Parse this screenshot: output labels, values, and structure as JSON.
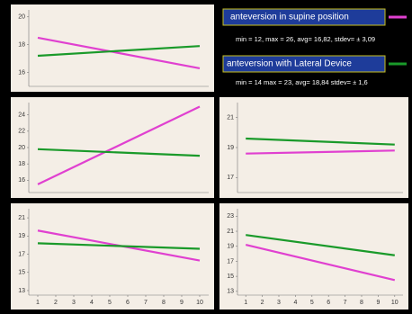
{
  "chart_data": [
    {
      "type": "line",
      "x": [
        1,
        10
      ],
      "xlim": [
        0.5,
        10.5
      ],
      "ylim": [
        15,
        20.5
      ],
      "yticks": [
        16,
        18,
        20
      ],
      "series": [
        {
          "color": "#e040d0",
          "values": [
            18.5,
            16.3
          ]
        },
        {
          "color": "#1a9a2a",
          "values": [
            17.2,
            17.9
          ]
        }
      ]
    },
    {
      "type": "line",
      "x": [
        1,
        10
      ],
      "xlim": [
        0.5,
        10.5
      ],
      "ylim": [
        14.5,
        25.5
      ],
      "yticks": [
        16,
        18,
        20,
        22,
        24
      ],
      "series": [
        {
          "color": "#e040d0",
          "values": [
            15.5,
            25
          ]
        },
        {
          "color": "#1a9a2a",
          "values": [
            19.8,
            19
          ]
        }
      ]
    },
    {
      "type": "line",
      "x": [
        1,
        10
      ],
      "xlim": [
        0.5,
        10.5
      ],
      "ylim": [
        16,
        22
      ],
      "yticks": [
        17,
        19,
        21
      ],
      "series": [
        {
          "color": "#e040d0",
          "values": [
            18.6,
            18.8
          ]
        },
        {
          "color": "#1a9a2a",
          "values": [
            19.6,
            19.2
          ]
        }
      ]
    },
    {
      "type": "line",
      "x": [
        1,
        10
      ],
      "xlim": [
        0.5,
        10.5
      ],
      "ylim": [
        12.5,
        22
      ],
      "yticks": [
        13,
        15,
        17,
        19,
        21
      ],
      "xticks": [
        1,
        2,
        3,
        4,
        5,
        6,
        7,
        8,
        9,
        10
      ],
      "series": [
        {
          "color": "#e040d0",
          "values": [
            19.6,
            16.3
          ]
        },
        {
          "color": "#1a9a2a",
          "values": [
            18.2,
            17.6
          ]
        }
      ]
    },
    {
      "type": "line",
      "x": [
        1,
        10
      ],
      "xlim": [
        0.5,
        10.5
      ],
      "ylim": [
        12.5,
        24
      ],
      "yticks": [
        13,
        15,
        17,
        19,
        21,
        23
      ],
      "xticks": [
        1,
        2,
        3,
        4,
        5,
        6,
        7,
        8,
        9,
        10
      ],
      "series": [
        {
          "color": "#e040d0",
          "values": [
            19.2,
            14.5
          ]
        },
        {
          "color": "#1a9a2a",
          "values": [
            20.5,
            17.8
          ]
        }
      ]
    }
  ],
  "legend": {
    "items": [
      {
        "label": "anteversion in supine position",
        "color": "#e040d0",
        "stats": "min = 12, max = 26, avg= 16,82, stdev= ± 3,09"
      },
      {
        "label": "anteversion with Lateral Device",
        "color": "#1a9a2a",
        "stats": "min = 14 max = 23, avg= 18,84 stdev= ± 1,6"
      }
    ]
  }
}
